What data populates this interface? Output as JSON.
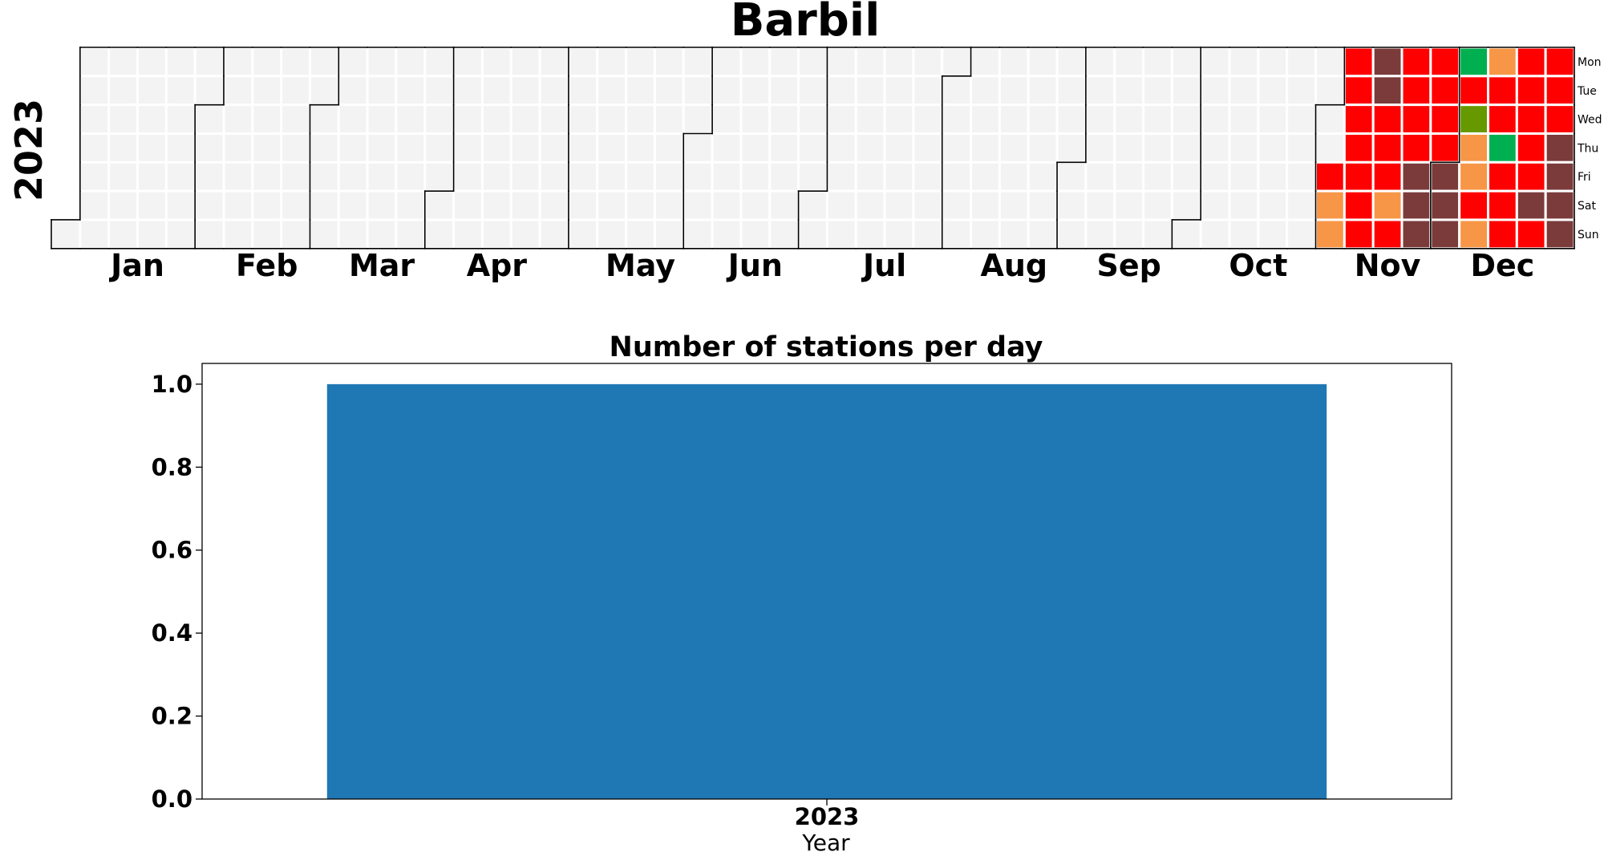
{
  "chart_data": [
    {
      "type": "heatmap",
      "title": "Barbil",
      "year": "2023",
      "months": [
        "Jan",
        "Feb",
        "Mar",
        "Apr",
        "May",
        "Jun",
        "Jul",
        "Aug",
        "Sep",
        "Oct",
        "Nov",
        "Dec"
      ],
      "weekdays": [
        "Mon",
        "Tue",
        "Wed",
        "Thu",
        "Fri",
        "Sat",
        "Sun"
      ],
      "empty_color": "#f3f3f3",
      "category_colors": {
        "good": "#00b050",
        "satisfactory": "#669900",
        "moderate": "#f79646",
        "poor": "#ff0000",
        "very_poor": "#7b3b3b"
      },
      "data_start": "2023-11-03",
      "days": [
        {
          "date": "2023-11-03",
          "category": "poor"
        },
        {
          "date": "2023-11-04",
          "category": "moderate"
        },
        {
          "date": "2023-11-05",
          "category": "moderate"
        },
        {
          "date": "2023-11-06",
          "category": "poor"
        },
        {
          "date": "2023-11-07",
          "category": "poor"
        },
        {
          "date": "2023-11-08",
          "category": "poor"
        },
        {
          "date": "2023-11-09",
          "category": "poor"
        },
        {
          "date": "2023-11-10",
          "category": "poor"
        },
        {
          "date": "2023-11-11",
          "category": "poor"
        },
        {
          "date": "2023-11-12",
          "category": "poor"
        },
        {
          "date": "2023-11-13",
          "category": "very_poor"
        },
        {
          "date": "2023-11-14",
          "category": "very_poor"
        },
        {
          "date": "2023-11-15",
          "category": "poor"
        },
        {
          "date": "2023-11-16",
          "category": "poor"
        },
        {
          "date": "2023-11-17",
          "category": "poor"
        },
        {
          "date": "2023-11-18",
          "category": "moderate"
        },
        {
          "date": "2023-11-19",
          "category": "poor"
        },
        {
          "date": "2023-11-20",
          "category": "poor"
        },
        {
          "date": "2023-11-21",
          "category": "poor"
        },
        {
          "date": "2023-11-22",
          "category": "poor"
        },
        {
          "date": "2023-11-23",
          "category": "poor"
        },
        {
          "date": "2023-11-24",
          "category": "very_poor"
        },
        {
          "date": "2023-11-25",
          "category": "very_poor"
        },
        {
          "date": "2023-11-26",
          "category": "very_poor"
        },
        {
          "date": "2023-11-27",
          "category": "poor"
        },
        {
          "date": "2023-11-28",
          "category": "poor"
        },
        {
          "date": "2023-11-29",
          "category": "poor"
        },
        {
          "date": "2023-11-30",
          "category": "poor"
        },
        {
          "date": "2023-12-01",
          "category": "very_poor"
        },
        {
          "date": "2023-12-02",
          "category": "very_poor"
        },
        {
          "date": "2023-12-03",
          "category": "very_poor"
        },
        {
          "date": "2023-12-04",
          "category": "good"
        },
        {
          "date": "2023-12-05",
          "category": "poor"
        },
        {
          "date": "2023-12-06",
          "category": "satisfactory"
        },
        {
          "date": "2023-12-07",
          "category": "moderate"
        },
        {
          "date": "2023-12-08",
          "category": "moderate"
        },
        {
          "date": "2023-12-09",
          "category": "poor"
        },
        {
          "date": "2023-12-10",
          "category": "moderate"
        },
        {
          "date": "2023-12-11",
          "category": "moderate"
        },
        {
          "date": "2023-12-12",
          "category": "poor"
        },
        {
          "date": "2023-12-13",
          "category": "poor"
        },
        {
          "date": "2023-12-14",
          "category": "good"
        },
        {
          "date": "2023-12-15",
          "category": "poor"
        },
        {
          "date": "2023-12-16",
          "category": "poor"
        },
        {
          "date": "2023-12-17",
          "category": "poor"
        },
        {
          "date": "2023-12-18",
          "category": "poor"
        },
        {
          "date": "2023-12-19",
          "category": "poor"
        },
        {
          "date": "2023-12-20",
          "category": "poor"
        },
        {
          "date": "2023-12-21",
          "category": "poor"
        },
        {
          "date": "2023-12-22",
          "category": "poor"
        },
        {
          "date": "2023-12-23",
          "category": "very_poor"
        },
        {
          "date": "2023-12-24",
          "category": "poor"
        },
        {
          "date": "2023-12-25",
          "category": "poor"
        },
        {
          "date": "2023-12-26",
          "category": "poor"
        },
        {
          "date": "2023-12-27",
          "category": "poor"
        },
        {
          "date": "2023-12-28",
          "category": "very_poor"
        },
        {
          "date": "2023-12-29",
          "category": "very_poor"
        },
        {
          "date": "2023-12-30",
          "category": "very_poor"
        },
        {
          "date": "2023-12-31",
          "category": "very_poor"
        }
      ]
    },
    {
      "type": "bar",
      "title": "Number of stations per day",
      "categories": [
        "2023"
      ],
      "values": [
        1
      ],
      "xlabel": "Year",
      "ylabel": "",
      "ylim": [
        0,
        1.05
      ],
      "yticks": [
        "0.0",
        "0.2",
        "0.4",
        "0.6",
        "0.8",
        "1.0"
      ],
      "bar_color": "#1f77b4"
    }
  ]
}
